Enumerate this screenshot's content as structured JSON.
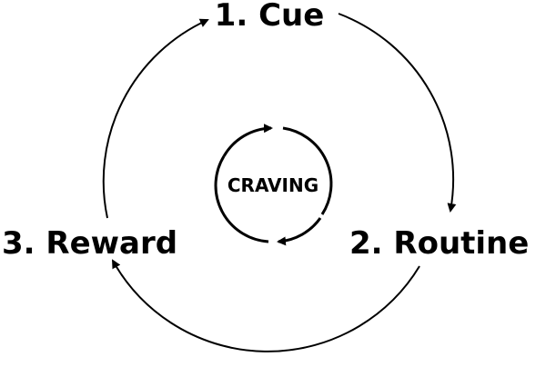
{
  "diagram": {
    "steps": [
      {
        "id": "cue",
        "label": "1. Cue"
      },
      {
        "id": "routine",
        "label": "2. Routine"
      },
      {
        "id": "reward",
        "label": "3. Reward"
      }
    ],
    "center": {
      "label": "CRAVING"
    },
    "stroke_color": "#000000",
    "background_color": "#ffffff"
  }
}
